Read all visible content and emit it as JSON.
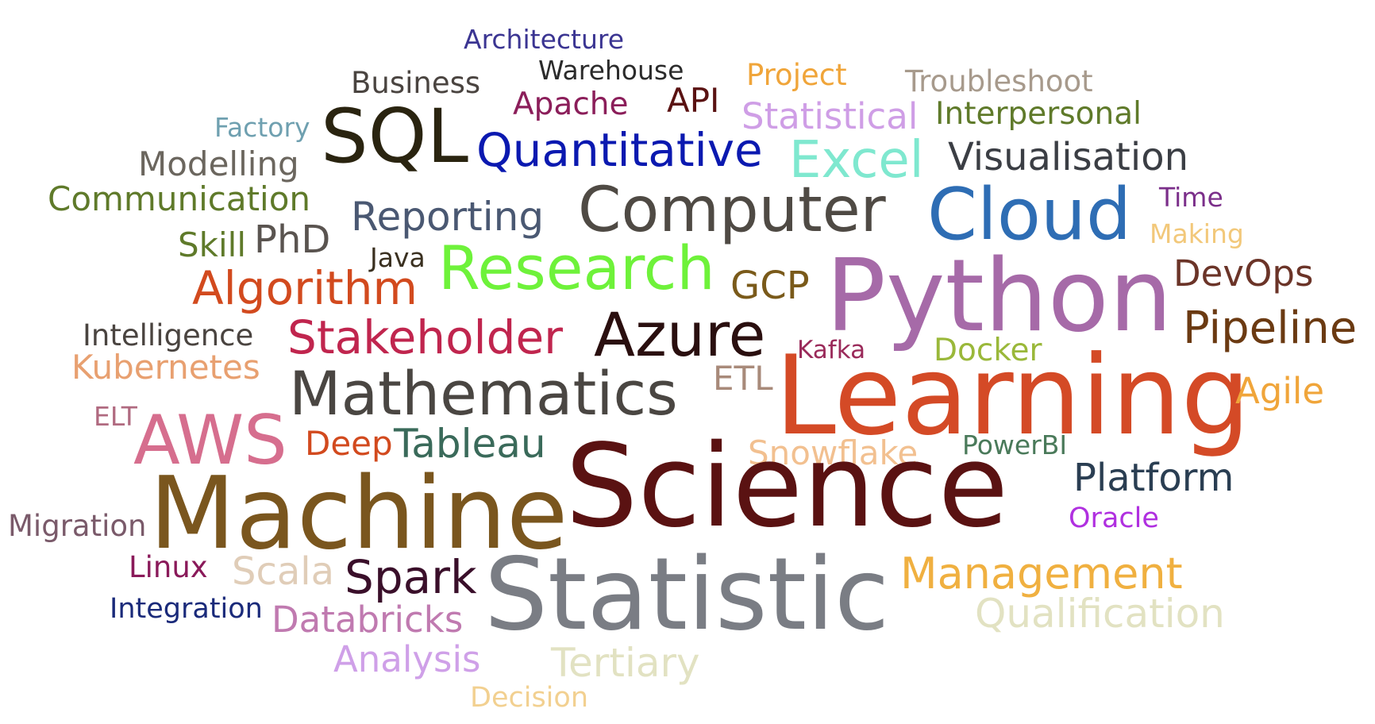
{
  "words": [
    {
      "text": "Architecture",
      "color": "#3b3592"
    },
    {
      "text": "Warehouse",
      "color": "#2b2b2b"
    },
    {
      "text": "Business",
      "color": "#4a4440"
    },
    {
      "text": "Project",
      "color": "#f0a53a"
    },
    {
      "text": "Troubleshoot",
      "color": "#a79a8c"
    },
    {
      "text": "Apache",
      "color": "#8b1e5a"
    },
    {
      "text": "API",
      "color": "#5a1212"
    },
    {
      "text": "Factory",
      "color": "#6fa0b0"
    },
    {
      "text": "SQL",
      "color": "#2a2410"
    },
    {
      "text": "Statistical",
      "color": "#cf9ee6"
    },
    {
      "text": "Interpersonal",
      "color": "#5f7a2a"
    },
    {
      "text": "Quantitative",
      "color": "#0b19b0"
    },
    {
      "text": "Modelling",
      "color": "#6b665e"
    },
    {
      "text": "Excel",
      "color": "#7fe8cf"
    },
    {
      "text": "Visualisation",
      "color": "#3b3e44"
    },
    {
      "text": "Communication",
      "color": "#5f7a2a"
    },
    {
      "text": "Computer",
      "color": "#4f4a44"
    },
    {
      "text": "Cloud",
      "color": "#2e6db4"
    },
    {
      "text": "Time",
      "color": "#7b2f8a"
    },
    {
      "text": "Reporting",
      "color": "#4a5872"
    },
    {
      "text": "Skill",
      "color": "#5f7a2a"
    },
    {
      "text": "PhD",
      "color": "#5a5450"
    },
    {
      "text": "Making",
      "color": "#f2c87a"
    },
    {
      "text": "Java",
      "color": "#3a3020"
    },
    {
      "text": "Research",
      "color": "#6ef23a"
    },
    {
      "text": "DevOps",
      "color": "#6b3428"
    },
    {
      "text": "Algorithm",
      "color": "#d24a1e"
    },
    {
      "text": "GCP",
      "color": "#7a5a1a"
    },
    {
      "text": "Python",
      "color": "#a66aa8"
    },
    {
      "text": "Intelligence",
      "color": "#4a4440"
    },
    {
      "text": "Stakeholder",
      "color": "#c0254e"
    },
    {
      "text": "Azure",
      "color": "#2a0f0f"
    },
    {
      "text": "Pipeline",
      "color": "#6b3a12"
    },
    {
      "text": "Kafka",
      "color": "#9a2a5a"
    },
    {
      "text": "Docker",
      "color": "#9ab83a"
    },
    {
      "text": "Kubernetes",
      "color": "#e8a070"
    },
    {
      "text": "Learning",
      "color": "#d44a26"
    },
    {
      "text": "Mathematics",
      "color": "#4a4642"
    },
    {
      "text": "ETL",
      "color": "#a88a7a"
    },
    {
      "text": "Agile",
      "color": "#f0a53a"
    },
    {
      "text": "ELT",
      "color": "#b06a80"
    },
    {
      "text": "AWS",
      "color": "#d66e8e"
    },
    {
      "text": "Deep",
      "color": "#d24a1e"
    },
    {
      "text": "Tableau",
      "color": "#3a6a5a"
    },
    {
      "text": "PowerBI",
      "color": "#4a7a5a"
    },
    {
      "text": "Snowflake",
      "color": "#f2c090"
    },
    {
      "text": "Platform",
      "color": "#2a3e52"
    },
    {
      "text": "Science",
      "color": "#5a1212"
    },
    {
      "text": "Machine",
      "color": "#7a561e"
    },
    {
      "text": "Migration",
      "color": "#7a5a6a"
    },
    {
      "text": "Oracle",
      "color": "#b030e0"
    },
    {
      "text": "Linux",
      "color": "#8a1a5a"
    },
    {
      "text": "Scala",
      "color": "#e0cdb8"
    },
    {
      "text": "Spark",
      "color": "#3a0f2a"
    },
    {
      "text": "Management",
      "color": "#f0b040"
    },
    {
      "text": "Integration",
      "color": "#1a2a7a"
    },
    {
      "text": "Statistic",
      "color": "#7a7d84"
    },
    {
      "text": "Qualification",
      "color": "#e2e2c2"
    },
    {
      "text": "Databricks",
      "color": "#c07ab0"
    },
    {
      "text": "Analysis",
      "color": "#cfa0e8"
    },
    {
      "text": "Tertiary",
      "color": "#e2e2c2"
    },
    {
      "text": "Decision",
      "color": "#f2d090"
    }
  ]
}
